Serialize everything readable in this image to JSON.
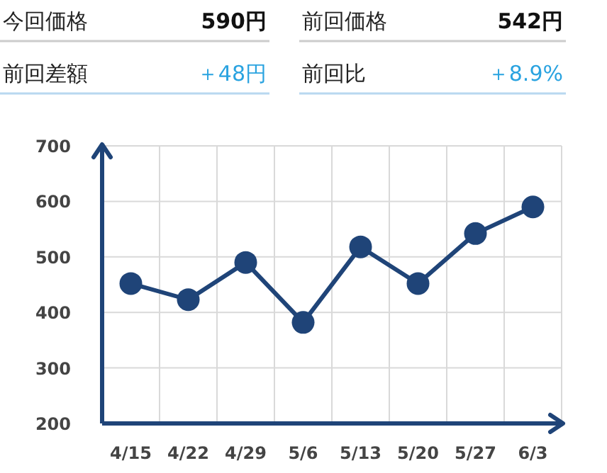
{
  "chart_data": [
    {
      "type": "other",
      "annotations": [
        "今回価格",
        "590円",
        "前回価格",
        "542円",
        "前回差額",
        "＋48円",
        "前回比",
        "＋8.9%"
      ]
    },
    {
      "type": "line",
      "categories": [
        "4/15",
        "4/22",
        "4/29",
        "5/6",
        "5/13",
        "5/20",
        "5/27",
        "6/3"
      ],
      "series": [
        {
          "color": "#1f4478",
          "values": [
            452,
            423,
            490,
            382,
            518,
            452,
            542,
            590
          ]
        }
      ],
      "ylim": [
        200,
        700
      ],
      "yticks": [
        200,
        300,
        400,
        500,
        600,
        700
      ],
      "grid": true,
      "marker": "circle",
      "line_style": "solid"
    }
  ]
}
